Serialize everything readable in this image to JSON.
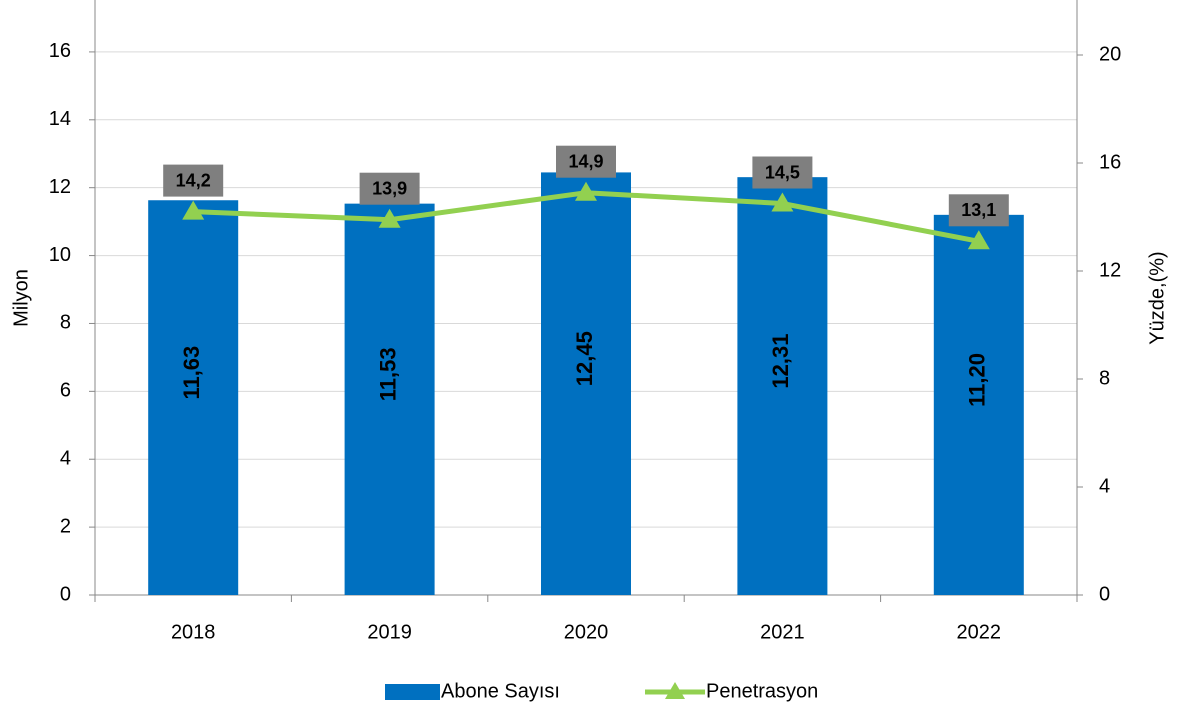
{
  "chart_data": {
    "type": "bar",
    "categories": [
      "2018",
      "2019",
      "2020",
      "2021",
      "2022"
    ],
    "series": [
      {
        "name": "Abone Sayısı",
        "type": "bar",
        "axis": "y",
        "color": "#0070c0",
        "values": [
          11.63,
          11.53,
          12.45,
          12.31,
          11.2
        ],
        "value_labels": [
          "11,63",
          "11,53",
          "12,45",
          "12,31",
          "11,20"
        ]
      },
      {
        "name": "Penetrasyon",
        "type": "line",
        "axis": "y2",
        "color": "#92d050",
        "values": [
          14.2,
          13.9,
          14.9,
          14.5,
          13.1
        ],
        "value_labels": [
          "14,2",
          "13,9",
          "14,9",
          "14,5",
          "13,1"
        ]
      }
    ],
    "ylabel": "Milyon",
    "y2label": "Yüzde,(%)",
    "ylim": [
      0,
      17.5
    ],
    "yticks": [
      0,
      2,
      4,
      6,
      8,
      10,
      12,
      14,
      16
    ],
    "y2lim": [
      0,
      22
    ],
    "y2ticks": [
      0,
      4,
      8,
      12,
      16,
      20
    ],
    "grid": true,
    "legend": "bottom"
  }
}
